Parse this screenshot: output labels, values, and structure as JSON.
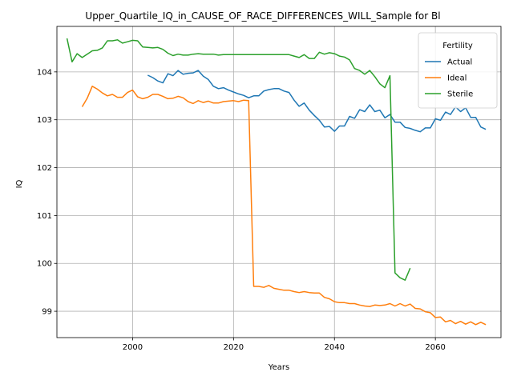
{
  "chart_data": {
    "type": "line",
    "title": "Upper_Quartile_IQ_in_CAUSE_OF_RACE_DIFFERENCES_WILL_Sample for Bl",
    "xlabel": "Years",
    "ylabel": "IQ",
    "xlim": [
      1985,
      2073
    ],
    "ylim": [
      98.45,
      104.95
    ],
    "xticks": [
      "2000",
      "2020",
      "2040",
      "2060"
    ],
    "yticks": [
      "99",
      "100",
      "101",
      "102",
      "103",
      "104"
    ],
    "grid": true,
    "legend": {
      "title": "Fertility",
      "position": "top-right"
    },
    "series": [
      {
        "name": "Actual",
        "color": "#1f77b4",
        "x": [
          2003,
          2004,
          2005,
          2006,
          2007,
          2008,
          2009,
          2010,
          2011,
          2012,
          2013,
          2014,
          2015,
          2016,
          2017,
          2018,
          2019,
          2020,
          2021,
          2022,
          2023,
          2024,
          2025,
          2026,
          2027,
          2028,
          2029,
          2030,
          2031,
          2032,
          2033,
          2034,
          2035,
          2036,
          2037,
          2038,
          2039,
          2040,
          2041,
          2042,
          2043,
          2044,
          2045,
          2046,
          2047,
          2048,
          2049,
          2050,
          2051,
          2052,
          2053,
          2054,
          2055,
          2056,
          2057,
          2058,
          2059,
          2060,
          2061,
          2062,
          2063,
          2064,
          2065,
          2066,
          2067,
          2068,
          2069,
          2070
        ],
        "y": [
          103.93,
          103.88,
          103.81,
          103.77,
          103.96,
          103.92,
          104.03,
          103.95,
          103.97,
          103.98,
          104.03,
          103.91,
          103.84,
          103.7,
          103.65,
          103.67,
          103.62,
          103.58,
          103.54,
          103.51,
          103.46,
          103.5,
          103.5,
          103.6,
          103.63,
          103.65,
          103.65,
          103.6,
          103.57,
          103.41,
          103.28,
          103.35,
          103.2,
          103.09,
          102.99,
          102.85,
          102.86,
          102.76,
          102.87,
          102.87,
          103.07,
          103.03,
          103.21,
          103.17,
          103.31,
          103.17,
          103.2,
          103.04,
          103.11,
          102.95,
          102.95,
          102.84,
          102.82,
          102.78,
          102.75,
          102.83,
          102.83,
          103.02,
          102.99,
          103.16,
          103.11,
          103.27,
          103.17,
          103.25,
          103.05,
          103.05,
          102.85,
          102.8
        ]
      },
      {
        "name": "Ideal",
        "color": "#ff7f0e",
        "x": [
          1990,
          1991,
          1992,
          1993,
          1994,
          1995,
          1996,
          1997,
          1998,
          1999,
          2000,
          2001,
          2002,
          2003,
          2004,
          2005,
          2006,
          2007,
          2008,
          2009,
          2010,
          2011,
          2012,
          2013,
          2014,
          2015,
          2016,
          2017,
          2018,
          2019,
          2020,
          2021,
          2022,
          2023,
          2024,
          2025,
          2026,
          2027,
          2028,
          2029,
          2030,
          2031,
          2032,
          2033,
          2034,
          2035,
          2036,
          2037,
          2038,
          2039,
          2040,
          2041,
          2042,
          2043,
          2044,
          2045,
          2046,
          2047,
          2048,
          2049,
          2050,
          2051,
          2052,
          2053,
          2054,
          2055,
          2056,
          2057,
          2058,
          2059,
          2060,
          2061,
          2062,
          2063,
          2064,
          2065,
          2066,
          2067,
          2068,
          2069,
          2070
        ],
        "y": [
          103.27,
          103.45,
          103.7,
          103.64,
          103.56,
          103.5,
          103.53,
          103.47,
          103.47,
          103.57,
          103.62,
          103.48,
          103.44,
          103.47,
          103.53,
          103.53,
          103.49,
          103.44,
          103.45,
          103.49,
          103.46,
          103.38,
          103.34,
          103.4,
          103.36,
          103.39,
          103.35,
          103.35,
          103.38,
          103.39,
          103.4,
          103.38,
          103.41,
          103.4,
          99.52,
          99.52,
          99.5,
          99.54,
          99.48,
          99.46,
          99.44,
          99.44,
          99.41,
          99.39,
          99.41,
          99.39,
          99.38,
          99.38,
          99.29,
          99.26,
          99.2,
          99.18,
          99.18,
          99.16,
          99.16,
          99.13,
          99.11,
          99.1,
          99.13,
          99.12,
          99.13,
          99.16,
          99.11,
          99.16,
          99.11,
          99.15,
          99.06,
          99.05,
          98.99,
          98.97,
          98.87,
          98.88,
          98.78,
          98.81,
          98.74,
          98.79,
          98.73,
          98.78,
          98.72,
          98.77,
          98.72
        ]
      },
      {
        "name": "Sterile",
        "color": "#2ca02c",
        "x": [
          1987,
          1988,
          1989,
          1990,
          1991,
          1992,
          1993,
          1994,
          1995,
          1996,
          1997,
          1998,
          1999,
          2000,
          2001,
          2002,
          2003,
          2004,
          2005,
          2006,
          2007,
          2008,
          2009,
          2010,
          2011,
          2012,
          2013,
          2014,
          2015,
          2016,
          2017,
          2018,
          2019,
          2020,
          2021,
          2022,
          2023,
          2024,
          2025,
          2026,
          2027,
          2028,
          2029,
          2030,
          2031,
          2032,
          2033,
          2034,
          2035,
          2036,
          2037,
          2038,
          2039,
          2040,
          2041,
          2042,
          2043,
          2044,
          2045,
          2046,
          2047,
          2048,
          2049,
          2050,
          2051,
          2052,
          2053,
          2054,
          2055
        ],
        "y": [
          104.7,
          104.21,
          104.38,
          104.3,
          104.37,
          104.44,
          104.45,
          104.5,
          104.65,
          104.65,
          104.67,
          104.6,
          104.63,
          104.66,
          104.65,
          104.52,
          104.51,
          104.5,
          104.51,
          104.47,
          104.39,
          104.34,
          104.37,
          104.35,
          104.35,
          104.37,
          104.38,
          104.37,
          104.37,
          104.37,
          104.35,
          104.36,
          104.36,
          104.36,
          104.36,
          104.36,
          104.36,
          104.36,
          104.36,
          104.36,
          104.36,
          104.36,
          104.36,
          104.36,
          104.36,
          104.33,
          104.3,
          104.36,
          104.28,
          104.28,
          104.41,
          104.37,
          104.4,
          104.38,
          104.33,
          104.31,
          104.25,
          104.07,
          104.03,
          103.95,
          104.03,
          103.9,
          103.75,
          103.67,
          103.92,
          99.8,
          99.7,
          99.65,
          99.9
        ]
      }
    ]
  }
}
